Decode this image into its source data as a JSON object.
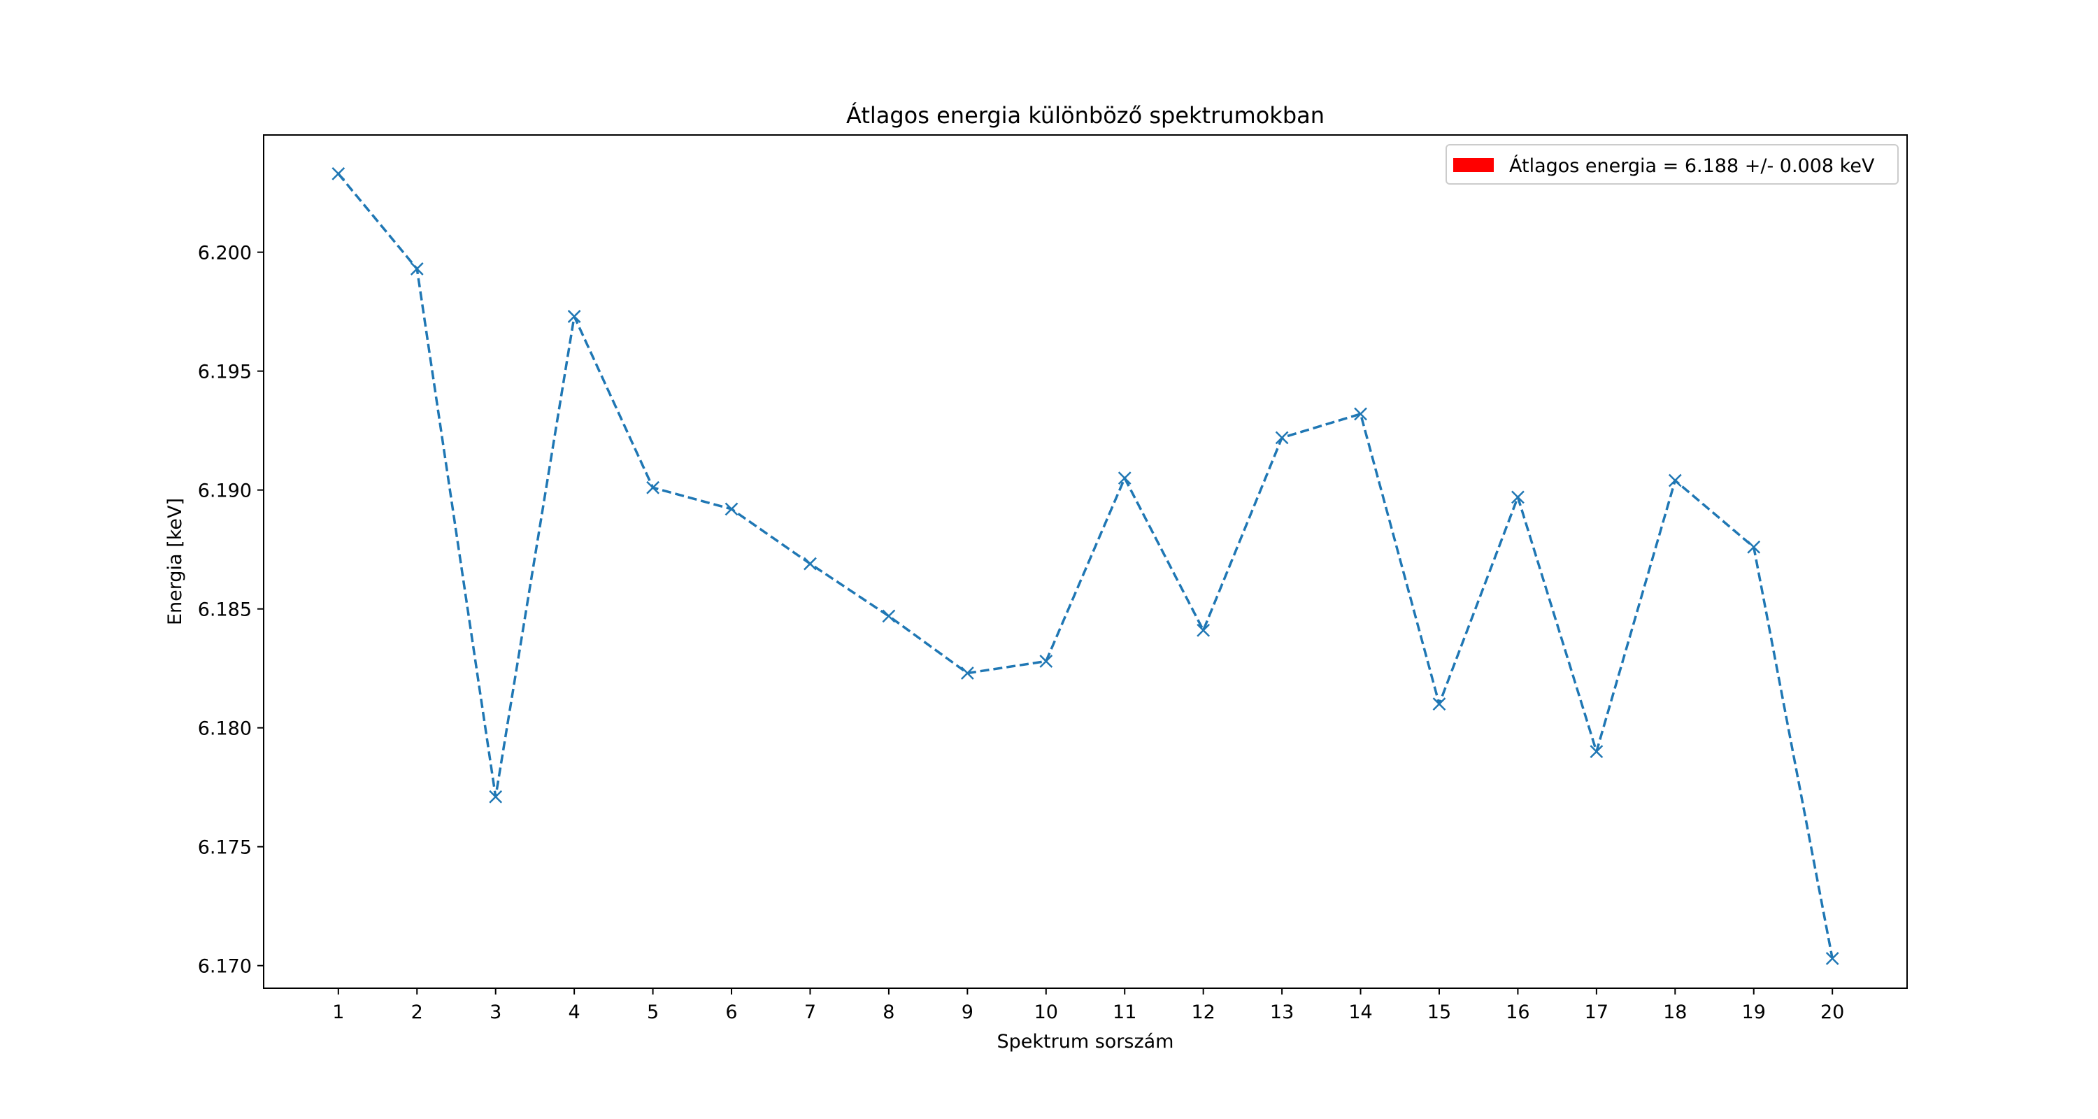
{
  "chart_data": {
    "type": "line",
    "title": "Átlagos energia különböző spektrumokban",
    "xlabel": "Spektrum sorszám",
    "ylabel": "Energia [keV]",
    "x": [
      1,
      2,
      3,
      4,
      5,
      6,
      7,
      8,
      9,
      10,
      11,
      12,
      13,
      14,
      15,
      16,
      17,
      18,
      19,
      20
    ],
    "x_tick_labels": [
      "1",
      "2",
      "3",
      "4",
      "5",
      "6",
      "7",
      "8",
      "9",
      "10",
      "11",
      "12",
      "13",
      "14",
      "15",
      "16",
      "17",
      "18",
      "19",
      "20"
    ],
    "series": [
      {
        "name": "Energia",
        "color": "#1f77b4",
        "line_style": "dashed",
        "marker": "x",
        "values": [
          6.2033,
          6.1993,
          6.1771,
          6.1973,
          6.1901,
          6.1892,
          6.1869,
          6.1847,
          6.1823,
          6.1828,
          6.1905,
          6.1841,
          6.1922,
          6.1932,
          6.181,
          6.1897,
          6.179,
          6.1904,
          6.1876,
          6.1703
        ]
      }
    ],
    "xlim": [
      0.05,
      20.95
    ],
    "ylim": [
      6.16905,
      6.20493
    ],
    "y_ticks": [
      6.17,
      6.175,
      6.18,
      6.185,
      6.19,
      6.195,
      6.2
    ],
    "y_tick_labels": [
      "6.170",
      "6.175",
      "6.180",
      "6.185",
      "6.190",
      "6.195",
      "6.200"
    ],
    "legend": {
      "label": "Átlagos energia = 6.188 +/- 0.008 keV",
      "color": "#ff0000",
      "placement": "top-right"
    },
    "grid": false
  }
}
